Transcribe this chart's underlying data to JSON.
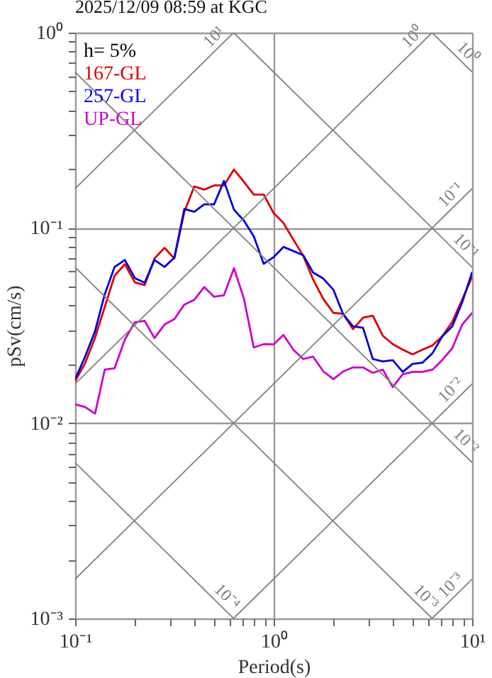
{
  "chart_data": {
    "type": "line",
    "title": "2025/12/09 08:59 at KGC",
    "xlabel": "Period(s)",
    "ylabel": "pSv(cm/s)",
    "annotations": [
      "h= 5%"
    ],
    "log": "xy",
    "grid": true,
    "legend": "top left",
    "marker": "none",
    "line_style": "solid",
    "xlim": [
      0.1,
      10
    ],
    "ylim": [
      0.001,
      1
    ],
    "xticks": [
      {
        "value": 0.1,
        "label": "10⁻¹"
      },
      {
        "value": 0.2,
        "label": null
      },
      {
        "value": 0.3,
        "label": null
      },
      {
        "value": 0.4,
        "label": null
      },
      {
        "value": 0.5,
        "label": null
      },
      {
        "value": 0.6,
        "label": null
      },
      {
        "value": 0.7,
        "label": null
      },
      {
        "value": 0.8,
        "label": null
      },
      {
        "value": 0.9,
        "label": null
      },
      {
        "value": 1,
        "label": "10⁰"
      },
      {
        "value": 2,
        "label": null
      },
      {
        "value": 3,
        "label": null
      },
      {
        "value": 4,
        "label": null
      },
      {
        "value": 5,
        "label": null
      },
      {
        "value": 6,
        "label": null
      },
      {
        "value": 7,
        "label": null
      },
      {
        "value": 8,
        "label": null
      },
      {
        "value": 9,
        "label": null
      },
      {
        "value": 10,
        "label": "10¹"
      }
    ],
    "yticks": [
      {
        "value": 0.001,
        "label": "10⁻³"
      },
      {
        "value": 0.002,
        "label": null
      },
      {
        "value": 0.003,
        "label": null
      },
      {
        "value": 0.004,
        "label": null
      },
      {
        "value": 0.005,
        "label": null
      },
      {
        "value": 0.006,
        "label": null
      },
      {
        "value": 0.007,
        "label": null
      },
      {
        "value": 0.008,
        "label": null
      },
      {
        "value": 0.009,
        "label": null
      },
      {
        "value": 0.01,
        "label": "10⁻²"
      },
      {
        "value": 0.02,
        "label": null
      },
      {
        "value": 0.03,
        "label": null
      },
      {
        "value": 0.04,
        "label": null
      },
      {
        "value": 0.05,
        "label": null
      },
      {
        "value": 0.06,
        "label": null
      },
      {
        "value": 0.07,
        "label": null
      },
      {
        "value": 0.08,
        "label": null
      },
      {
        "value": 0.09,
        "label": null
      },
      {
        "value": 0.1,
        "label": "10⁻¹"
      },
      {
        "value": 0.2,
        "label": null
      },
      {
        "value": 0.3,
        "label": null
      },
      {
        "value": 0.4,
        "label": null
      },
      {
        "value": 0.5,
        "label": null
      },
      {
        "value": 0.6,
        "label": null
      },
      {
        "value": 0.7,
        "label": null
      },
      {
        "value": 0.8,
        "label": null
      },
      {
        "value": 0.9,
        "label": null
      },
      {
        "value": 1,
        "label": "10⁰"
      }
    ],
    "x": [
      0.1,
      0.112,
      0.126,
      0.141,
      0.158,
      0.178,
      0.2,
      0.224,
      0.251,
      0.282,
      0.316,
      0.355,
      0.398,
      0.447,
      0.501,
      0.562,
      0.631,
      0.708,
      0.794,
      0.891,
      1,
      1.12,
      1.26,
      1.41,
      1.58,
      1.78,
      2,
      2.24,
      2.51,
      2.82,
      3.16,
      3.55,
      3.98,
      4.47,
      5.01,
      5.62,
      6.31,
      7.08,
      7.94,
      8.91,
      10
    ],
    "series": [
      {
        "name": "167-GL",
        "color": "#dd0000",
        "values": [
          0.0164,
          0.0202,
          0.0274,
          0.0394,
          0.0569,
          0.0652,
          0.0526,
          0.0509,
          0.0697,
          0.079,
          0.0697,
          0.121,
          0.163,
          0.157,
          0.165,
          0.165,
          0.199,
          0.172,
          0.148,
          0.148,
          0.119,
          0.106,
          0.0867,
          0.072,
          0.0544,
          0.0432,
          0.0367,
          0.0363,
          0.0303,
          0.0347,
          0.0355,
          0.028,
          0.0254,
          0.0238,
          0.0225,
          0.0238,
          0.025,
          0.0279,
          0.033,
          0.043,
          0.0562
        ]
      },
      {
        "name": "257-GL",
        "color": "#0000dd",
        "values": [
          0.0168,
          0.0218,
          0.0296,
          0.0457,
          0.0631,
          0.0685,
          0.0553,
          0.0524,
          0.0685,
          0.0631,
          0.0704,
          0.125,
          0.121,
          0.132,
          0.132,
          0.174,
          0.124,
          0.109,
          0.0906,
          0.0655,
          0.0708,
          0.0799,
          0.076,
          0.0724,
          0.0591,
          0.055,
          0.0482,
          0.0361,
          0.0313,
          0.0308,
          0.0213,
          0.0207,
          0.021,
          0.0183,
          0.0201,
          0.0204,
          0.0228,
          0.0279,
          0.0313,
          0.0416,
          0.0594
        ]
      },
      {
        "name": "UP-GL",
        "color": "#cc00cc",
        "values": [
          0.0125,
          0.0121,
          0.0112,
          0.0188,
          0.0191,
          0.0268,
          0.0329,
          0.0334,
          0.0273,
          0.032,
          0.0341,
          0.0405,
          0.0428,
          0.0498,
          0.0444,
          0.0452,
          0.0621,
          0.0435,
          0.0244,
          0.0254,
          0.0253,
          0.0283,
          0.0237,
          0.0213,
          0.0219,
          0.0184,
          0.0168,
          0.0184,
          0.0193,
          0.0193,
          0.0181,
          0.0188,
          0.0153,
          0.0178,
          0.0183,
          0.0183,
          0.0188,
          0.0211,
          0.0242,
          0.032,
          0.0367
        ]
      },
      {
        "name": "10¹",
        "color": "#808080",
        "x": [
          0.1,
          0.628
        ],
        "values": [
          0.159,
          1
        ]
      },
      {
        "name": "10⁰",
        "color": "#808080",
        "x": [
          0.1,
          6.283
        ],
        "values": [
          0.0159,
          1
        ]
      },
      {
        "name": "10⁻¹",
        "color": "#808080",
        "x": [
          0.1,
          10
        ],
        "values": [
          0.00159,
          0.159
        ]
      },
      {
        "name": "10⁻²",
        "color": "#808080",
        "x": [
          0.628,
          10
        ],
        "values": [
          0.001,
          0.0159
        ]
      },
      {
        "name": "10⁻³",
        "color": "#808080",
        "x": [
          6.283,
          10
        ],
        "values": [
          0.001,
          0.00159
        ]
      },
      {
        "name": "10⁰",
        "color": "#808080",
        "x": [
          6.283,
          10
        ],
        "values": [
          1,
          0.628
        ]
      },
      {
        "name": "10⁻¹",
        "color": "#808080",
        "x": [
          0.628,
          10
        ],
        "values": [
          1,
          0.0628
        ]
      },
      {
        "name": "10⁻²",
        "color": "#808080",
        "x": [
          0.1,
          10
        ],
        "values": [
          0.628,
          0.00628
        ]
      },
      {
        "name": "10⁻³",
        "color": "#808080",
        "x": [
          0.1,
          6.283
        ],
        "values": [
          0.0628,
          0.001
        ]
      },
      {
        "name": "10⁻⁴",
        "color": "#808080",
        "x": [
          0.1,
          0.628
        ],
        "values": [
          0.00628,
          0.001
        ]
      }
    ]
  }
}
